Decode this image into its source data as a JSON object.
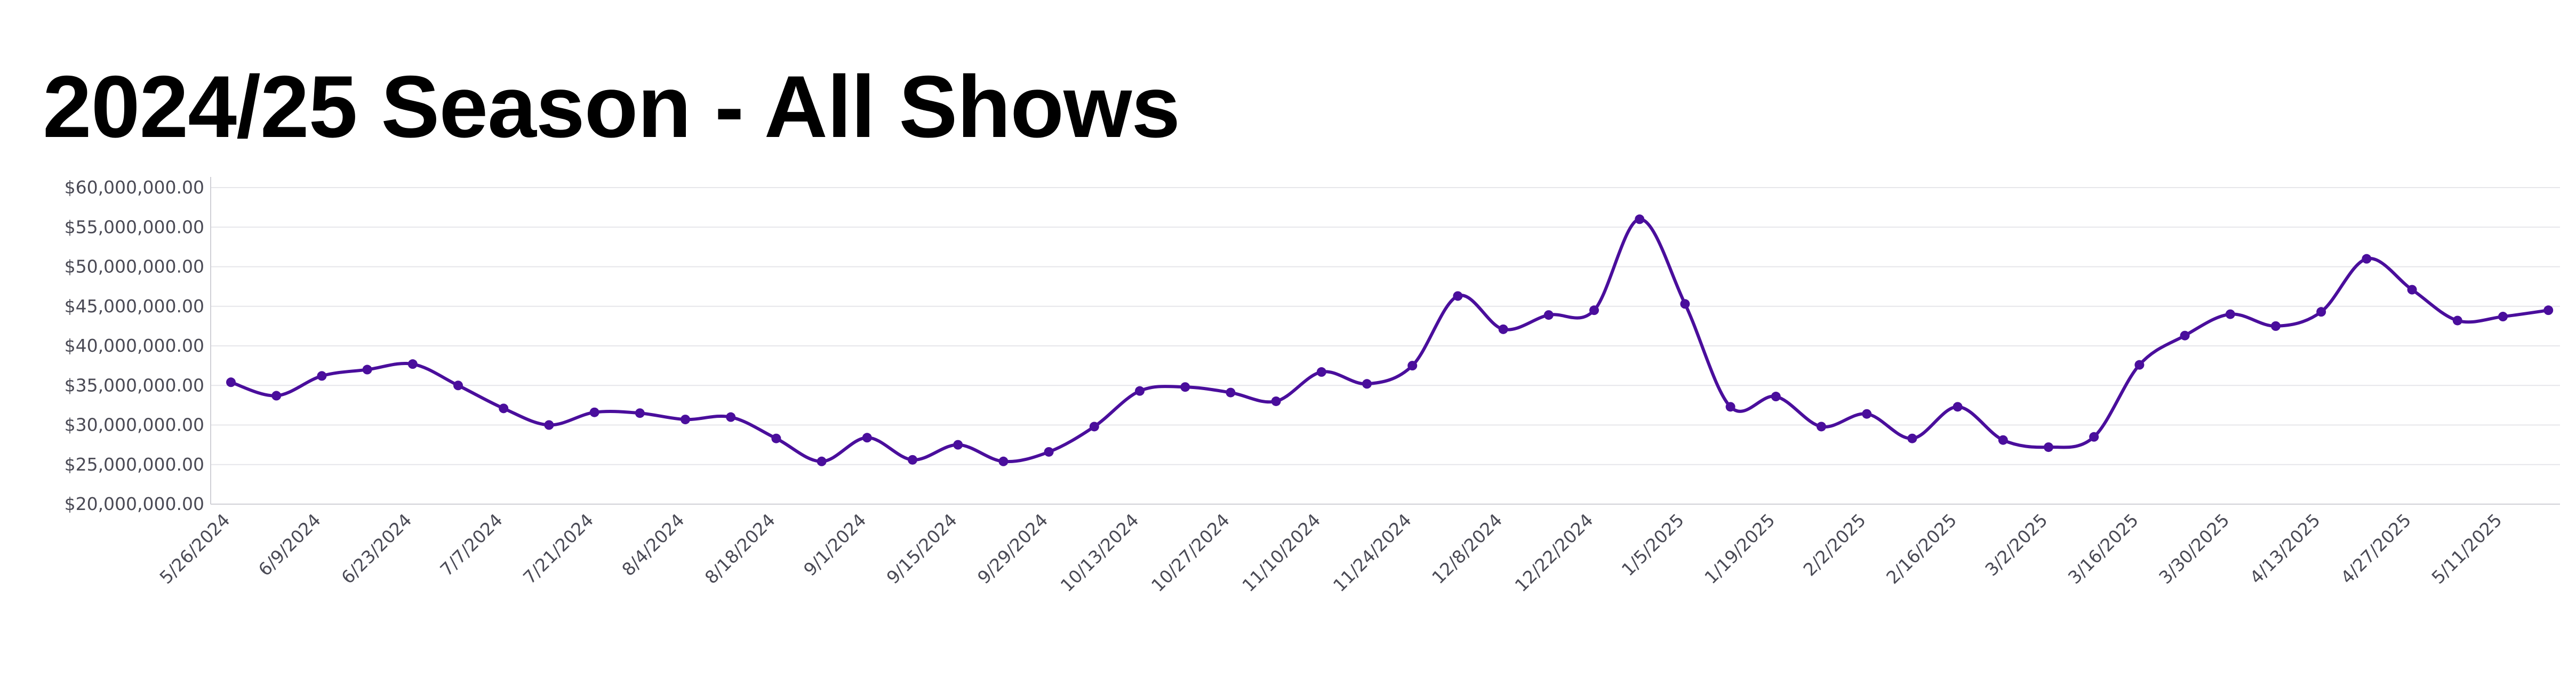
{
  "chart_data": {
    "type": "line",
    "title": "2024/25 Season - All Shows",
    "xlabel": "",
    "ylabel": "",
    "ylim": [
      20000000,
      60000000
    ],
    "y_ticks": [
      "$60,000,000.00",
      "$55,000,000.00",
      "$50,000,000.00",
      "$45,000,000.00",
      "$40,000,000.00",
      "$35,000,000.00",
      "$30,000,000.00",
      "$25,000,000.00",
      "$20,000,000.00"
    ],
    "y_tick_values": [
      60000000,
      55000000,
      50000000,
      45000000,
      40000000,
      35000000,
      30000000,
      25000000,
      20000000
    ],
    "x_tick_labels": [
      "5/26/2024",
      "6/9/2024",
      "6/23/2024",
      "7/7/2024",
      "7/21/2024",
      "8/4/2024",
      "8/18/2024",
      "9/1/2024",
      "9/15/2024",
      "9/29/2024",
      "10/13/2024",
      "10/27/2024",
      "11/10/2024",
      "11/24/2024",
      "12/8/2024",
      "12/22/2024",
      "1/5/2025",
      "1/19/2025",
      "2/2/2025",
      "2/16/2025",
      "3/2/2025",
      "3/16/2025",
      "3/30/2025",
      "4/13/2025",
      "4/27/2025",
      "5/11/2025"
    ],
    "grid": true,
    "legend": "none",
    "colors": {
      "line": "#4a0e9c",
      "grid": "#e6e6ea",
      "axis": "#d0d0d6"
    },
    "series": [
      {
        "x": [
          "5/26/2024",
          "6/2/2024",
          "6/9/2024",
          "6/16/2024",
          "6/23/2024",
          "6/30/2024",
          "7/7/2024",
          "7/14/2024",
          "7/21/2024",
          "7/28/2024",
          "8/4/2024",
          "8/11/2024",
          "8/18/2024",
          "8/25/2024",
          "9/1/2024",
          "9/8/2024",
          "9/15/2024",
          "9/22/2024",
          "9/29/2024",
          "10/6/2024",
          "10/13/2024",
          "10/20/2024",
          "10/27/2024",
          "11/3/2024",
          "11/10/2024",
          "11/17/2024",
          "11/24/2024",
          "12/1/2024",
          "12/8/2024",
          "12/15/2024",
          "12/22/2024",
          "12/29/2024",
          "1/5/2025",
          "1/12/2025",
          "1/19/2025",
          "1/26/2025",
          "2/2/2025",
          "2/9/2025",
          "2/16/2025",
          "2/23/2025",
          "3/2/2025",
          "3/9/2025",
          "3/16/2025",
          "3/23/2025",
          "3/30/2025",
          "4/6/2025",
          "4/13/2025",
          "4/20/2025",
          "4/27/2025",
          "5/4/2025",
          "5/11/2025",
          "5/18/2025"
        ],
        "values": [
          35400000,
          33700000,
          36200000,
          37000000,
          37700000,
          35000000,
          32100000,
          30000000,
          31600000,
          31500000,
          30700000,
          31000000,
          28300000,
          25400000,
          28400000,
          25600000,
          27500000,
          25400000,
          26600000,
          29800000,
          34300000,
          34800000,
          34100000,
          33000000,
          36700000,
          35200000,
          37500000,
          46300000,
          42100000,
          43900000,
          44500000,
          56000000,
          45300000,
          32300000,
          33600000,
          29800000,
          31400000,
          28300000,
          32300000,
          28100000,
          27200000,
          28500000,
          37600000,
          41300000,
          44000000,
          42500000,
          44300000,
          51000000,
          47100000,
          43200000,
          43700000,
          44500000
        ]
      }
    ]
  }
}
